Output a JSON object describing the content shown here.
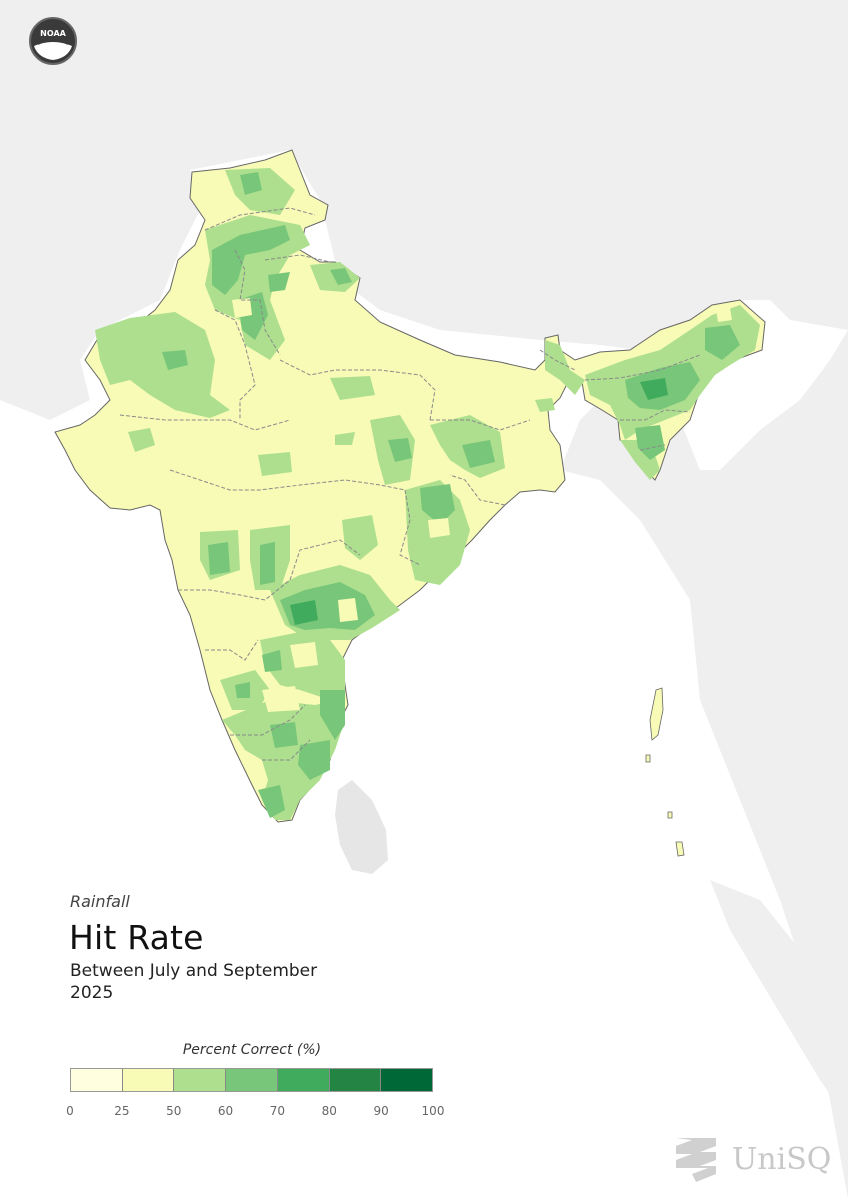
{
  "logos": {
    "top_left": "NOAA",
    "bottom_right": "UniSQ"
  },
  "header": {
    "category": "Rainfall",
    "title": "Hit Rate",
    "period": "Between July and September",
    "year": "2025"
  },
  "legend": {
    "title": "Percent Correct (%)",
    "ticks": [
      "0",
      "25",
      "50",
      "60",
      "70",
      "80",
      "90",
      "100"
    ],
    "colors": [
      "#ffffe0",
      "#f7fbb5",
      "#addf8e",
      "#78c679",
      "#41ab5d",
      "#238443",
      "#006837"
    ]
  },
  "map_colors": {
    "land_background": "#efefef",
    "ocean": "#ffffff",
    "border": "#777777"
  }
}
